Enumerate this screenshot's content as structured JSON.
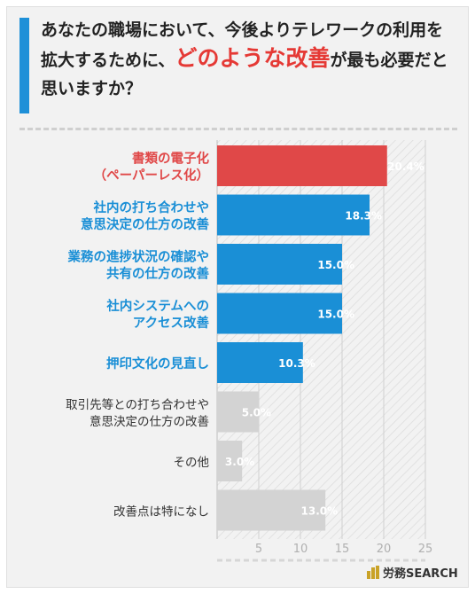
{
  "header": {
    "title_part1": "あなたの職場において、今後よりテレワークの利用を拡大するために、",
    "title_highlight": "どのような改善",
    "title_part2": "が最も必要だと思いますか？"
  },
  "brand": {
    "name": "労務SEARCH"
  },
  "colors": {
    "red": "#e04848",
    "blue": "#1a8fd6",
    "gray": "#d3d3d3",
    "accent_bar": "#1e90d8"
  },
  "chart_data": {
    "type": "bar",
    "orientation": "horizontal",
    "categories": [
      [
        "書類の電子化",
        "（ペーパーレス化）"
      ],
      [
        "社内の打ち合わせや",
        "意思決定の仕方の改善"
      ],
      [
        "業務の進捗状況の確認や",
        "共有の仕方の改善"
      ],
      [
        "社内システムへの",
        "アクセス改善"
      ],
      [
        "押印文化の見直し"
      ],
      [
        "取引先等との打ち合わせや",
        "意思決定の仕方の改善"
      ],
      [
        "その他"
      ],
      [
        "改善点は特になし"
      ]
    ],
    "values": [
      20.4,
      18.3,
      15.0,
      15.0,
      10.3,
      5.0,
      3.0,
      13.0
    ],
    "value_labels": [
      "20.4%",
      "18.3%",
      "15.0%",
      "15.0%",
      "10.3%",
      "5.0%",
      "3.0%",
      "13.0%"
    ],
    "bar_colors": [
      "red",
      "blue",
      "blue",
      "blue",
      "blue",
      "gray",
      "gray",
      "gray"
    ],
    "xlim": [
      0,
      25
    ],
    "xticks": [
      5,
      10,
      15,
      20,
      25
    ],
    "grid": true
  }
}
